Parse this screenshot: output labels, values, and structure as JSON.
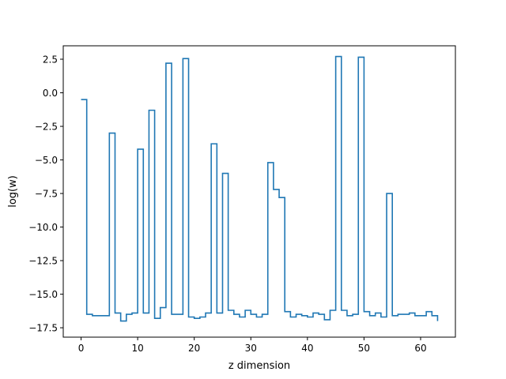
{
  "chart_data": {
    "type": "line",
    "drawstyle": "steps-post",
    "title": "",
    "xlabel": "z dimension",
    "ylabel": "log(w)",
    "xlim": [
      -3.15,
      66.15
    ],
    "ylim": [
      -18.2,
      3.5
    ],
    "xticks": [
      0,
      10,
      20,
      30,
      40,
      50,
      60
    ],
    "xtick_labels": [
      "0",
      "10",
      "20",
      "30",
      "40",
      "50",
      "60"
    ],
    "yticks": [
      2.5,
      0.0,
      -2.5,
      -5.0,
      -7.5,
      -10.0,
      -12.5,
      -15.0,
      -17.5
    ],
    "ytick_labels": [
      "2.5",
      "0.0",
      "−2.5",
      "−5.0",
      "−7.5",
      "−10.0",
      "−12.5",
      "−15.0",
      "−17.5"
    ],
    "grid": false,
    "color": "#1f77b4",
    "series": [
      {
        "x": [
          0,
          1,
          2,
          3,
          4,
          5,
          6,
          7,
          8,
          9,
          10,
          11,
          12,
          13,
          14,
          15,
          16,
          17,
          18,
          19,
          20,
          21,
          22,
          23,
          24,
          25,
          26,
          27,
          28,
          29,
          30,
          31,
          32,
          33,
          34,
          35,
          36,
          37,
          38,
          39,
          40,
          41,
          42,
          43,
          44,
          45,
          46,
          47,
          48,
          49,
          50,
          51,
          52,
          53,
          54,
          55,
          56,
          57,
          58,
          59,
          60,
          61,
          62,
          63
        ],
        "values": [
          -0.5,
          -16.5,
          -16.6,
          -16.6,
          -16.6,
          -3.0,
          -16.4,
          -17.0,
          -16.5,
          -16.4,
          -4.2,
          -16.4,
          -1.3,
          -16.8,
          -16.0,
          2.2,
          -16.5,
          -16.5,
          2.55,
          -16.7,
          -16.8,
          -16.7,
          -16.4,
          -3.8,
          -16.4,
          -6.0,
          -16.2,
          -16.5,
          -16.7,
          -16.2,
          -16.5,
          -16.7,
          -16.5,
          -5.2,
          -7.2,
          -7.8,
          -16.3,
          -16.7,
          -16.5,
          -16.6,
          -16.7,
          -16.4,
          -16.5,
          -16.9,
          -16.2,
          2.7,
          -16.2,
          -16.6,
          -16.5,
          2.65,
          -16.3,
          -16.6,
          -16.4,
          -16.7,
          -7.5,
          -16.6,
          -16.5,
          -16.5,
          -16.4,
          -16.6,
          -16.6,
          -16.3,
          -16.6,
          -17.0
        ]
      }
    ]
  }
}
